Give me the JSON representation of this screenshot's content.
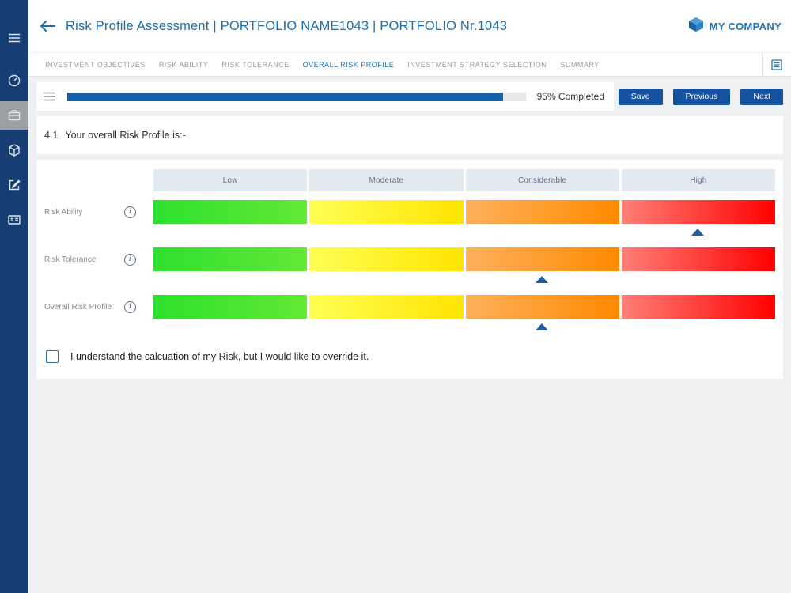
{
  "sidebar": {
    "icons": [
      {
        "name": "menu-icon",
        "active": false
      },
      {
        "name": "dashboard-icon",
        "active": false
      },
      {
        "name": "portfolio-icon",
        "active": true
      },
      {
        "name": "products-icon",
        "active": false
      },
      {
        "name": "edit-icon",
        "active": false
      },
      {
        "name": "accounts-icon",
        "active": false
      }
    ]
  },
  "header": {
    "title": "Risk Profile Assessment | PORTFOLIO NAME1043 | PORTFOLIO Nr.1043",
    "brand": "MY COMPANY"
  },
  "tabs": [
    {
      "label": "INVESTMENT OBJECTIVES",
      "active": false
    },
    {
      "label": "RISK ABILITY",
      "active": false
    },
    {
      "label": "RISK TOLERANCE",
      "active": false
    },
    {
      "label": "OVERALL RISK PROFILE",
      "active": true
    },
    {
      "label": "INVESTMENT STRATEGY SELECTION",
      "active": false
    },
    {
      "label": "SUMMARY",
      "active": false
    }
  ],
  "progress": {
    "percent": 95,
    "label": "95% Completed"
  },
  "actions": {
    "save": "Save",
    "previous": "Previous",
    "next": "Next"
  },
  "question": {
    "number": "4.1",
    "text": "Your overall Risk Profile is:-"
  },
  "risk_table": {
    "columns": [
      "Low",
      "Moderate",
      "Considerable",
      "High"
    ],
    "rows": [
      {
        "label": "Risk Ability",
        "marker_col": 3
      },
      {
        "label": "Risk Tolerance",
        "marker_col": 2
      },
      {
        "label": "Overall Risk Profile",
        "marker_col": 2
      }
    ],
    "colors": {
      "low": "#2ee02e",
      "moderate": "#ffe400",
      "considerable": "#ff8a00",
      "high": "#ff0000",
      "marker": "#1d5ca6"
    }
  },
  "override": {
    "label": "I understand the calcuation of my Risk, but I would like to override it.",
    "checked": false
  }
}
